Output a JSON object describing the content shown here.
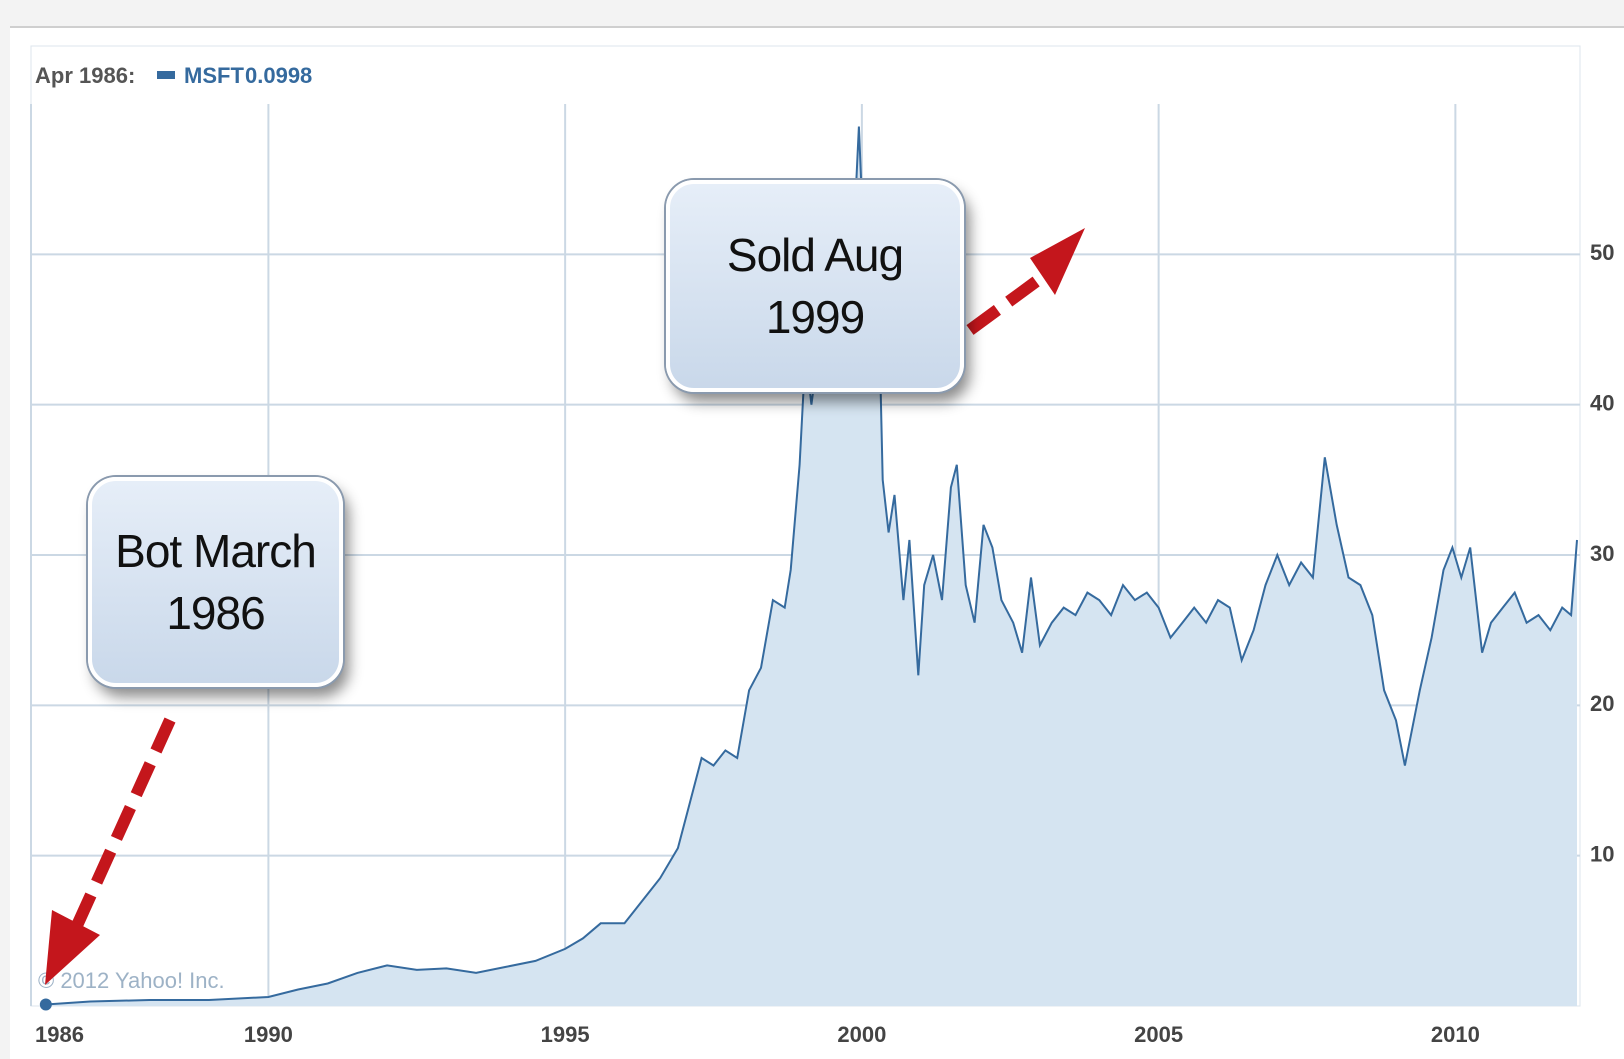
{
  "chart_data": {
    "type": "area",
    "hover": {
      "date": "Apr 1986:",
      "value": "0.0998"
    },
    "copyright": "© 2012 Yahoo! Inc.",
    "series": [
      {
        "name": "MSFT",
        "color": "#356a9e",
        "fill": "#d5e4f1",
        "values": [
          0.0998,
          0.3,
          0.4,
          0.4,
          0.6,
          1.1,
          1.5,
          2.2,
          2.7,
          2.4,
          2.5,
          2.2,
          2.6,
          3.0,
          3.8,
          4.5,
          5.5,
          5.5,
          7.0,
          8.5,
          10.5,
          13.5,
          16.5,
          16.0,
          17.0,
          16.5,
          21.0,
          22.5,
          27.0,
          26.5,
          29.0,
          36.0,
          43.5,
          40.0,
          44.5,
          41.0,
          45.0,
          47.0,
          46.0,
          58.5,
          49.0,
          46.0,
          52.5,
          35.0,
          31.5,
          34.0,
          27.0,
          31.0,
          22.0,
          28.0,
          30.0,
          27.0,
          34.5,
          36.0,
          28.0,
          25.5,
          32.0,
          30.5,
          27.0,
          25.5,
          23.5,
          28.5,
          24.0,
          25.5,
          26.5,
          26.0,
          27.5,
          27.0,
          26.0,
          28.0,
          27.0,
          27.5,
          26.5,
          24.5,
          25.5,
          26.5,
          25.5,
          27.0,
          26.5,
          23.0,
          25.0,
          28.0,
          30.0,
          28.0,
          29.5,
          28.5,
          36.5,
          32.0,
          28.5,
          28.0,
          26.0,
          21.0,
          19.0,
          16.0,
          21.0,
          24.5,
          29.0,
          30.5,
          28.5,
          30.5,
          23.5,
          25.5,
          26.5,
          27.5,
          25.5,
          26.0,
          25.0,
          26.5,
          26.0,
          31.0
        ]
      }
    ],
    "x": [
      1986.25,
      1987,
      1988,
      1989,
      1990,
      1990.5,
      1991,
      1991.5,
      1992,
      1992.5,
      1993,
      1993.5,
      1994,
      1994.5,
      1995,
      1995.3,
      1995.6,
      1996,
      1996.3,
      1996.6,
      1996.9,
      1997.1,
      1997.3,
      1997.5,
      1997.7,
      1997.9,
      1998.1,
      1998.3,
      1998.5,
      1998.7,
      1998.8,
      1998.95,
      1999.05,
      1999.15,
      1999.3,
      1999.45,
      1999.55,
      1999.65,
      1999.8,
      1999.95,
      2000.05,
      2000.15,
      2000.25,
      2000.35,
      2000.45,
      2000.55,
      2000.7,
      2000.8,
      2000.95,
      2001.05,
      2001.2,
      2001.35,
      2001.5,
      2001.6,
      2001.75,
      2001.9,
      2002.05,
      2002.2,
      2002.35,
      2002.55,
      2002.7,
      2002.85,
      2003.0,
      2003.2,
      2003.4,
      2003.6,
      2003.8,
      2004.0,
      2004.2,
      2004.4,
      2004.6,
      2004.8,
      2005.0,
      2005.2,
      2005.4,
      2005.6,
      2005.8,
      2006.0,
      2006.2,
      2006.4,
      2006.6,
      2006.8,
      2007.0,
      2007.2,
      2007.4,
      2007.6,
      2007.8,
      2008.0,
      2008.2,
      2008.4,
      2008.6,
      2008.8,
      2009.0,
      2009.15,
      2009.4,
      2009.6,
      2009.8,
      2009.95,
      2010.1,
      2010.25,
      2010.45,
      2010.6,
      2010.8,
      2011.0,
      2011.2,
      2011.4,
      2011.6,
      2011.8,
      2011.95,
      2012.05
    ],
    "xlim": [
      1986,
      2012.1
    ],
    "xticks": [
      1986,
      1990,
      1995,
      2000,
      2005,
      2010
    ],
    "ylim": [
      0,
      60
    ],
    "yticks": [
      10,
      20,
      30,
      40,
      50
    ],
    "grid": true,
    "annotations": [
      {
        "text": "Bot March 1986"
      },
      {
        "text": "Sold Aug 1999"
      }
    ]
  }
}
